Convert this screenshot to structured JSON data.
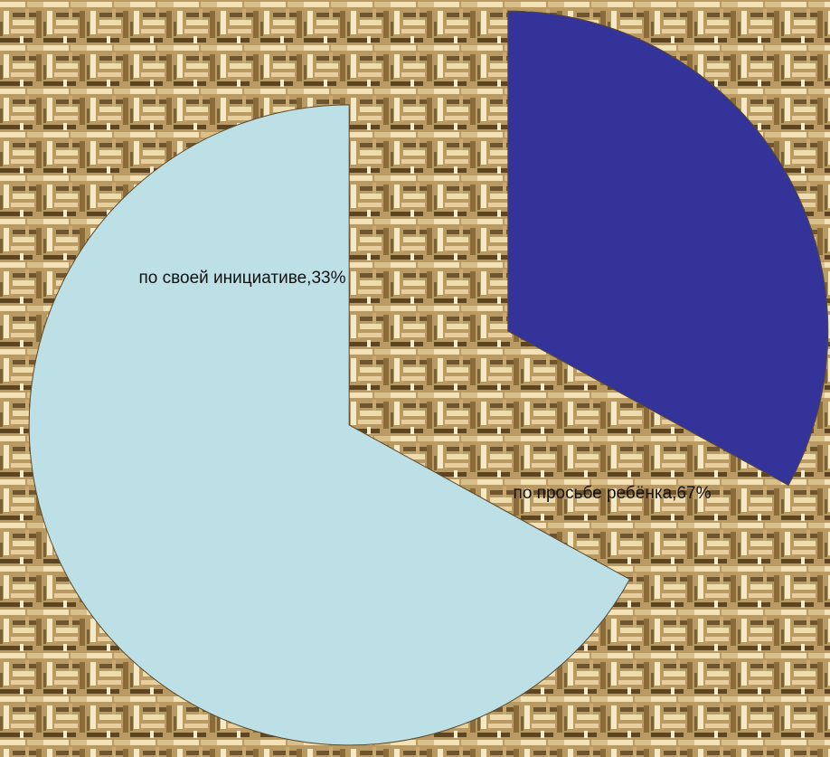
{
  "chart_data": {
    "type": "pie",
    "exploded": true,
    "slices": [
      {
        "label": "по своей инициативе",
        "value": 33,
        "data_label": "по своей инициативе,33%",
        "color": "#333399"
      },
      {
        "label": "по просьбе ребёнка",
        "value": 67,
        "data_label": "по просьбе ребёнка,67%",
        "color": "#bde0e6"
      }
    ]
  },
  "colors": {
    "background_light": "#e8d3a3",
    "background_dark": "#6e5530",
    "slice_stroke": "#5b4a2d",
    "label_text": "#111111"
  }
}
